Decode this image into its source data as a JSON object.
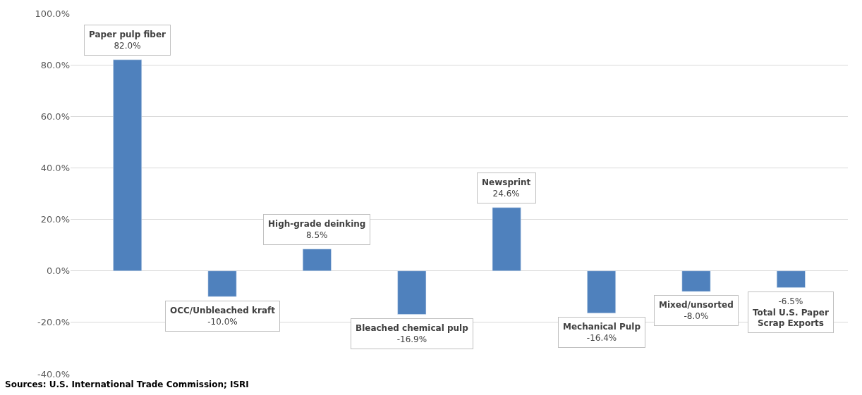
{
  "chart_data": {
    "type": "bar",
    "categories": [
      "Paper pulp fiber",
      "OCC/Unbleached kraft",
      "High-grade deinking",
      "Bleached chemical pulp",
      "Newsprint",
      "Mechanical Pulp",
      "Mixed/unsorted",
      "Total U.S. Paper Scrap Exports"
    ],
    "values": [
      82.0,
      -10.0,
      8.5,
      -16.9,
      24.6,
      -16.4,
      -8.0,
      -6.5
    ],
    "value_labels": [
      "82.0%",
      "-10.0%",
      "8.5%",
      "-16.9%",
      "24.6%",
      "-16.4%",
      "-8.0%",
      "-6.5%"
    ],
    "color": "#4f81bd",
    "ylim": [
      -40,
      100
    ],
    "yticks": [
      {
        "value": -40,
        "label": "-40.0%"
      },
      {
        "value": -20,
        "label": "-20.0%"
      },
      {
        "value": 0,
        "label": "0.0%"
      },
      {
        "value": 20,
        "label": "20.0%"
      },
      {
        "value": 40,
        "label": "40.0%"
      },
      {
        "value": 60,
        "label": "60.0%"
      },
      {
        "value": 80,
        "label": "80.0%"
      },
      {
        "value": 100,
        "label": "100.0%"
      }
    ],
    "grid": "y",
    "tick_labels": "y",
    "annotations": [
      "Sources: U.S. International Trade Commission; ISRI"
    ]
  }
}
